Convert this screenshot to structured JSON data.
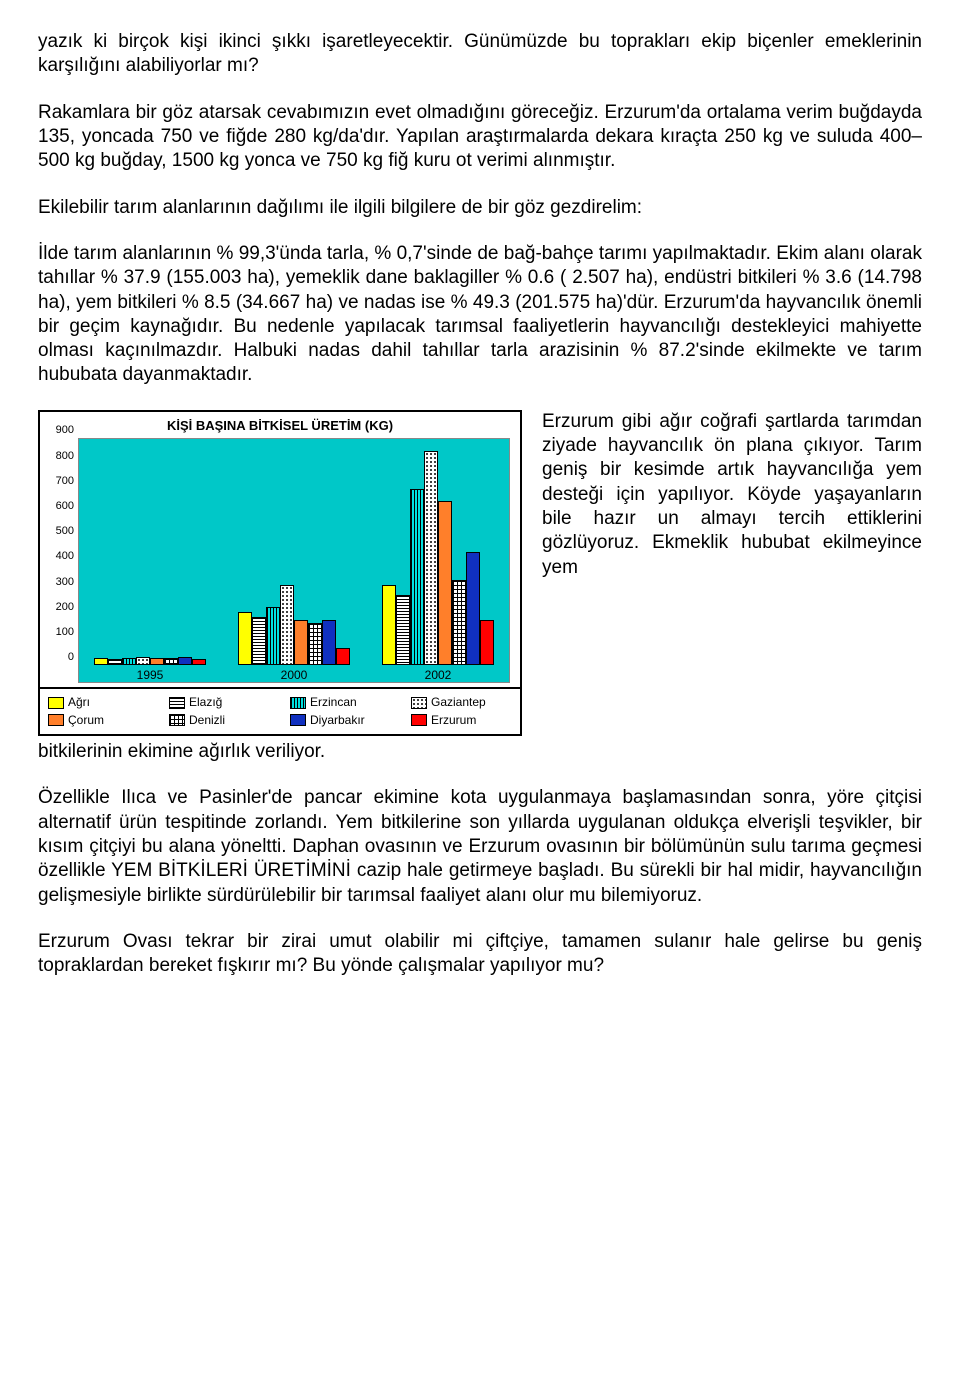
{
  "paragraphs": {
    "p1": "yazık ki birçok kişi ikinci şıkkı işaretleyecektir. Günümüzde bu toprakları ekip biçenler emeklerinin karşılığını alabiliyorlar mı?",
    "p2": "Rakamlara bir göz atarsak cevabımızın evet olmadığını göreceğiz. Erzurum'da ortalama verim buğdayda 135, yoncada 750 ve fiğde 280 kg/da'dır. Yapılan araştırmalarda dekara kıraçta 250 kg ve suluda 400–500 kg buğday, 1500 kg yonca ve 750 kg fiğ kuru ot verimi alınmıştır.",
    "p3": "Ekilebilir tarım alanlarının dağılımı ile ilgili bilgilere de bir göz gezdirelim:",
    "p4": "İlde tarım alanlarının % 99,3'ünda tarla, % 0,7'sinde de bağ-bahçe tarımı yapılmaktadır. Ekim alanı olarak tahıllar % 37.9 (155.003 ha), yemeklik dane baklagiller % 0.6 ( 2.507 ha), endüstri bitkileri % 3.6 (14.798 ha), yem bitkileri % 8.5 (34.667 ha) ve nadas ise % 49.3 (201.575 ha)'dür. Erzurum'da hayvancılık önemli bir geçim kaynağıdır. Bu nedenle yapılacak tarımsal faaliyetlerin hayvancılığı destekleyici mahiyette olması kaçınılmazdır. Halbuki nadas dahil tahıllar tarla arazisinin % 87.2'sinde ekilmekte ve tarım hububata dayanmaktadır.",
    "side": "Erzurum gibi ağır coğrafi şartlarda tarımdan ziyade hayvancılık ön plana çıkıyor. Tarım geniş bir kesimde artık hayvancılığa yem desteği için yapılıyor. Köyde yaşayanların bile hazır un almayı tercih ettiklerini gözlüyoruz. Ekmeklik hububat ekilmeyince yem",
    "tail": "bitkilerinin ekimine ağırlık veriliyor.",
    "p5": "Özellikle Ilıca ve Pasinler'de pancar ekimine kota uygulanmaya başlamasından sonra, yöre çitçisi alternatif ürün tespitinde zorlandı. Yem bitkilerine son yıllarda uygulanan oldukça elverişli teşvikler, bir kısım çitçiyi bu alana yöneltti. Daphan ovasının ve Erzurum ovasının bir bölümünün sulu tarıma geçmesi özellikle YEM BİTKİLERİ ÜRETİMİNİ cazip hale getirmeye başladı. Bu sürekli bir hal midir, hayvancılığın gelişmesiyle birlikte sürdürülebilir bir tarımsal faaliyet alanı olur mu bilemiyoruz.",
    "p6": "Erzurum Ovası tekrar bir zirai umut olabilir mi çiftçiye, tamamen sulanır hale gelirse bu geniş topraklardan bereket fışkırır mı? Bu yönde çalışmalar yapılıyor mu?"
  },
  "chart": {
    "title": "KİŞİ BAŞINA BİTKİSEL ÜRETİM (KG)",
    "type": "bar",
    "background_color": "#00c8c8",
    "ylim_max": 900,
    "ytick_step": 100,
    "yticks": [
      0,
      100,
      200,
      300,
      400,
      500,
      600,
      700,
      800,
      900
    ],
    "x_categories": [
      "1995",
      "2000",
      "2002"
    ],
    "series": [
      {
        "name": "Ağrı",
        "color": "#ffff00",
        "pattern": "",
        "values": [
          30,
          210,
          320
        ]
      },
      {
        "name": "Elazığ",
        "color": "#ffffff",
        "pattern": "pattern-hlines",
        "values": [
          25,
          190,
          280
        ]
      },
      {
        "name": "Erzincan",
        "color": "#00e0e0",
        "pattern": "pattern-vlines",
        "values": [
          30,
          230,
          700
        ]
      },
      {
        "name": "Gaziantep",
        "color": "#ffffff",
        "pattern": "pattern-dots",
        "values": [
          35,
          320,
          850
        ]
      },
      {
        "name": "Çorum",
        "color": "#ff7f2a",
        "pattern": "",
        "values": [
          30,
          180,
          650
        ]
      },
      {
        "name": "Denizli",
        "color": "#ffffff",
        "pattern": "pattern-grid",
        "values": [
          30,
          170,
          340
        ]
      },
      {
        "name": "Diyarbakır",
        "color": "#1030c0",
        "pattern": "",
        "values": [
          32,
          180,
          450
        ]
      },
      {
        "name": "Erzurum",
        "color": "#ff0000",
        "pattern": "",
        "values": [
          25,
          70,
          180
        ]
      }
    ],
    "legend_rows": [
      [
        0,
        1,
        2,
        3
      ],
      [
        4,
        5,
        6,
        7
      ]
    ]
  }
}
